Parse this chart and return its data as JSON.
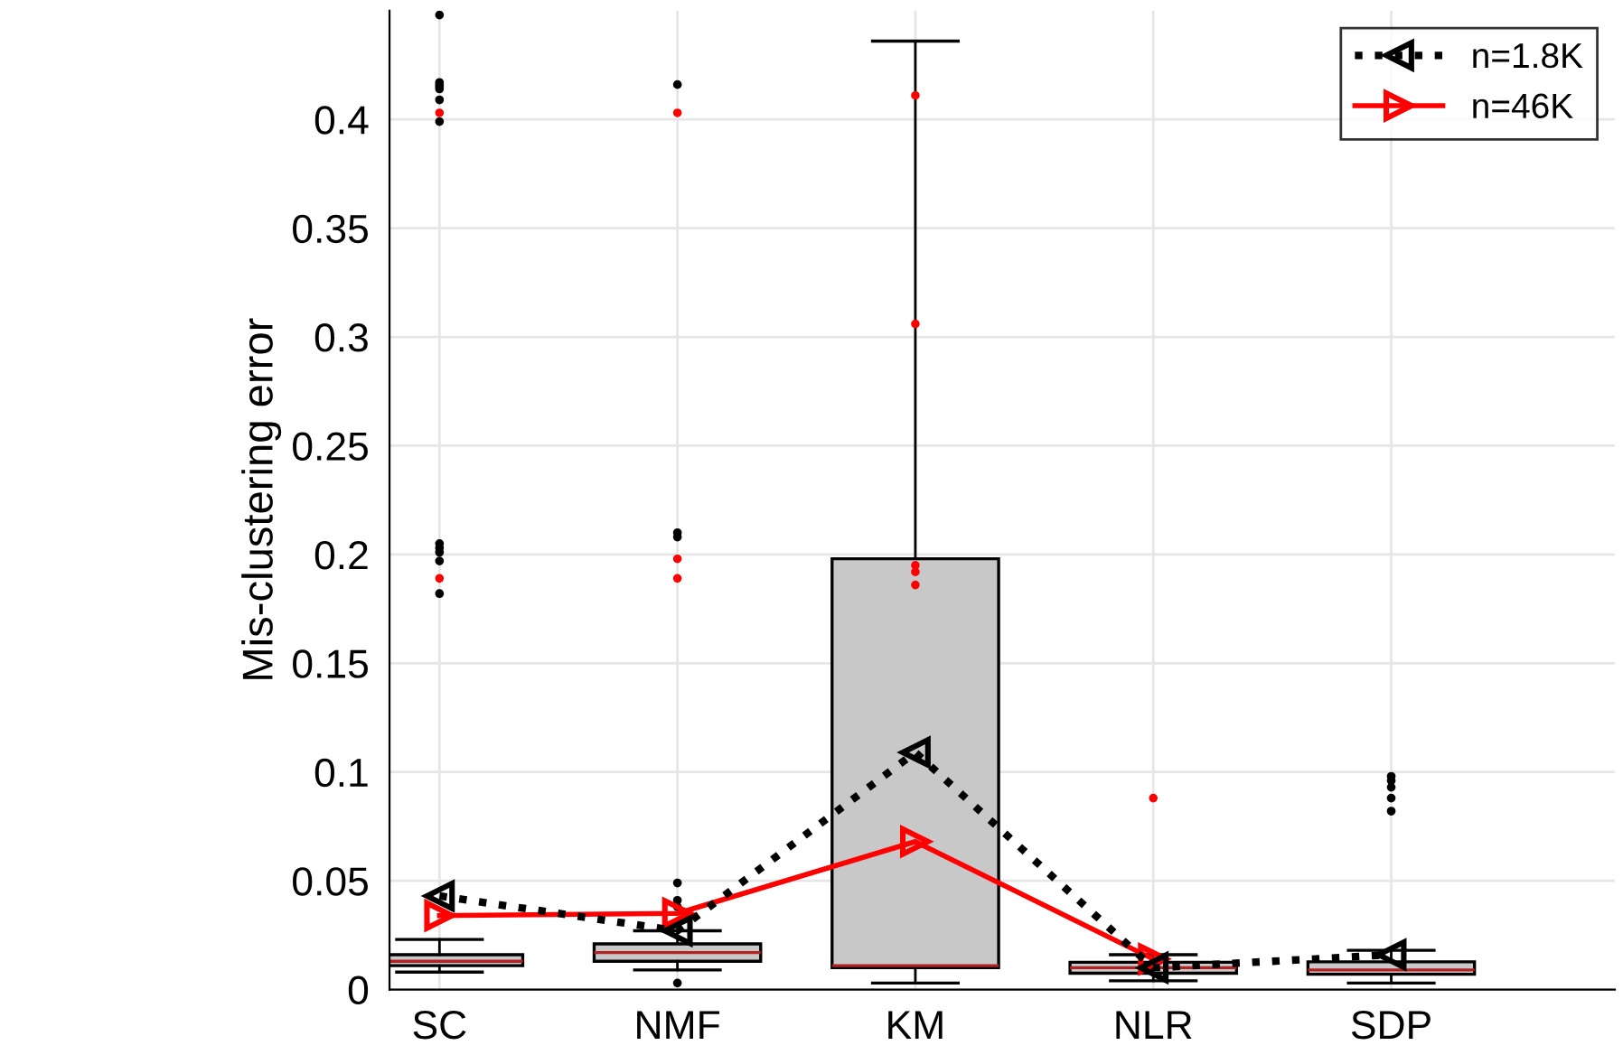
{
  "chart_data": {
    "type": "box",
    "ylabel": "Mis-clustering error",
    "categories": [
      "SC",
      "NMF",
      "KM",
      "NLR",
      "SDP"
    ],
    "ylim": [
      0,
      0.45
    ],
    "yticks": [
      0,
      0.05,
      0.1,
      0.15,
      0.2,
      0.25,
      0.3,
      0.35,
      0.4
    ],
    "grid": true,
    "legend": "top right",
    "series": [
      {
        "color": "#c8c8c8",
        "boxes": [
          {
            "low": 0.008,
            "q1": 0.011,
            "median": 0.013,
            "q3": 0.016,
            "high": 0.023,
            "outliers": [
              0.448,
              0.417,
              0.416,
              0.415,
              0.414,
              0.409,
              0.399,
              0.205,
              0.203,
              0.201,
              0.197,
              0.182
            ]
          },
          {
            "low": 0.009,
            "q1": 0.013,
            "median": 0.017,
            "q3": 0.021,
            "high": 0.027,
            "outliers": [
              0.416,
              0.21,
              0.208,
              0.049,
              0.041,
              0.038,
              0.003
            ]
          },
          {
            "low": 0.003,
            "q1": 0.01,
            "median": 0.011,
            "q3": 0.198,
            "high": 0.436
          },
          {
            "low": 0.004,
            "q1": 0.0075,
            "median": 0.01,
            "q3": 0.0125,
            "high": 0.016
          },
          {
            "low": 0.003,
            "q1": 0.007,
            "median": 0.009,
            "q3": 0.0127,
            "high": 0.018,
            "outliers": [
              0.098,
              0.096,
              0.093,
              0.088,
              0.082
            ]
          }
        ]
      },
      {
        "type": "scatter",
        "color": "#ff0000",
        "x": [
          "SC",
          "SC",
          "NMF",
          "NMF",
          "NMF",
          "KM",
          "KM",
          "KM",
          "KM",
          "KM",
          "NLR"
        ],
        "values": [
          0.403,
          0.189,
          0.403,
          0.198,
          0.189,
          0.411,
          0.306,
          0.195,
          0.192,
          0.186,
          0.088
        ]
      },
      {
        "type": "line",
        "name": "n=1.8K",
        "color": "#000000",
        "line_style": "dotted",
        "marker": "triangle",
        "values": [
          0.043,
          0.027,
          0.109,
          0.01,
          0.016
        ]
      },
      {
        "type": "line",
        "name": "n=46K",
        "color": "#ff0000",
        "line_style": "solid",
        "marker": "triangle",
        "values": [
          0.034,
          0.035,
          0.068,
          0.014,
          null
        ]
      }
    ]
  }
}
